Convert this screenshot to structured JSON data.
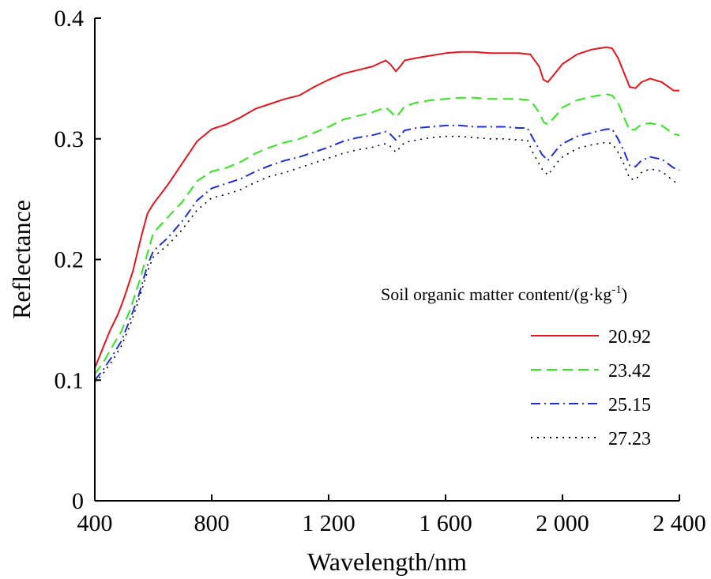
{
  "chart_data": {
    "type": "line",
    "xlabel": "Wavelength/nm",
    "ylabel": "Reflectance",
    "xlim": [
      400,
      2400
    ],
    "ylim": [
      0,
      0.4
    ],
    "x_ticks": [
      400,
      800,
      1200,
      1600,
      2000,
      2400
    ],
    "x_tick_labels": [
      "400",
      "800",
      "1 200",
      "1 600",
      "2 000",
      "2 400"
    ],
    "y_ticks": [
      0,
      0.1,
      0.2,
      0.3,
      0.4
    ],
    "y_tick_labels": [
      "0",
      "0.1",
      "0.2",
      "0.3",
      "0.4"
    ],
    "grid": false,
    "legend": {
      "title_main": "Soil organic matter content/(g·kg",
      "title_sup": "-1",
      "title_end": ")",
      "placement": "right"
    },
    "series": [
      {
        "name": "20.92",
        "color": "#e8141c",
        "style": "solid",
        "points": [
          [
            400,
            0.11
          ],
          [
            420,
            0.122
          ],
          [
            450,
            0.14
          ],
          [
            480,
            0.155
          ],
          [
            500,
            0.168
          ],
          [
            530,
            0.19
          ],
          [
            560,
            0.22
          ],
          [
            580,
            0.238
          ],
          [
            600,
            0.246
          ],
          [
            650,
            0.262
          ],
          [
            700,
            0.28
          ],
          [
            750,
            0.298
          ],
          [
            800,
            0.308
          ],
          [
            850,
            0.312
          ],
          [
            900,
            0.318
          ],
          [
            950,
            0.325
          ],
          [
            1000,
            0.329
          ],
          [
            1050,
            0.333
          ],
          [
            1100,
            0.336
          ],
          [
            1150,
            0.343
          ],
          [
            1200,
            0.349
          ],
          [
            1250,
            0.354
          ],
          [
            1300,
            0.357
          ],
          [
            1350,
            0.36
          ],
          [
            1395,
            0.365
          ],
          [
            1410,
            0.362
          ],
          [
            1430,
            0.356
          ],
          [
            1445,
            0.36
          ],
          [
            1460,
            0.365
          ],
          [
            1500,
            0.367
          ],
          [
            1550,
            0.369
          ],
          [
            1600,
            0.371
          ],
          [
            1650,
            0.372
          ],
          [
            1700,
            0.372
          ],
          [
            1750,
            0.371
          ],
          [
            1800,
            0.371
          ],
          [
            1850,
            0.371
          ],
          [
            1890,
            0.37
          ],
          [
            1920,
            0.36
          ],
          [
            1935,
            0.349
          ],
          [
            1950,
            0.347
          ],
          [
            1980,
            0.356
          ],
          [
            2000,
            0.362
          ],
          [
            2050,
            0.37
          ],
          [
            2100,
            0.374
          ],
          [
            2150,
            0.376
          ],
          [
            2170,
            0.375
          ],
          [
            2190,
            0.367
          ],
          [
            2210,
            0.355
          ],
          [
            2230,
            0.343
          ],
          [
            2250,
            0.342
          ],
          [
            2270,
            0.347
          ],
          [
            2300,
            0.35
          ],
          [
            2340,
            0.347
          ],
          [
            2380,
            0.34
          ],
          [
            2400,
            0.34
          ]
        ]
      },
      {
        "name": "23.42",
        "color": "#2ee81a",
        "style": "dashed",
        "points": [
          [
            400,
            0.105
          ],
          [
            430,
            0.115
          ],
          [
            460,
            0.128
          ],
          [
            490,
            0.14
          ],
          [
            520,
            0.158
          ],
          [
            550,
            0.18
          ],
          [
            580,
            0.205
          ],
          [
            600,
            0.222
          ],
          [
            650,
            0.235
          ],
          [
            700,
            0.248
          ],
          [
            750,
            0.265
          ],
          [
            800,
            0.273
          ],
          [
            850,
            0.276
          ],
          [
            900,
            0.281
          ],
          [
            950,
            0.288
          ],
          [
            1000,
            0.293
          ],
          [
            1050,
            0.297
          ],
          [
            1100,
            0.3
          ],
          [
            1150,
            0.305
          ],
          [
            1200,
            0.31
          ],
          [
            1250,
            0.316
          ],
          [
            1300,
            0.319
          ],
          [
            1350,
            0.322
          ],
          [
            1395,
            0.326
          ],
          [
            1410,
            0.323
          ],
          [
            1430,
            0.318
          ],
          [
            1445,
            0.322
          ],
          [
            1460,
            0.327
          ],
          [
            1500,
            0.33
          ],
          [
            1550,
            0.332
          ],
          [
            1600,
            0.333
          ],
          [
            1650,
            0.334
          ],
          [
            1700,
            0.334
          ],
          [
            1750,
            0.333
          ],
          [
            1800,
            0.333
          ],
          [
            1850,
            0.333
          ],
          [
            1890,
            0.332
          ],
          [
            1920,
            0.322
          ],
          [
            1935,
            0.314
          ],
          [
            1950,
            0.312
          ],
          [
            1980,
            0.32
          ],
          [
            2000,
            0.326
          ],
          [
            2050,
            0.332
          ],
          [
            2100,
            0.335
          ],
          [
            2150,
            0.337
          ],
          [
            2170,
            0.336
          ],
          [
            2190,
            0.33
          ],
          [
            2210,
            0.318
          ],
          [
            2230,
            0.307
          ],
          [
            2250,
            0.308
          ],
          [
            2270,
            0.312
          ],
          [
            2300,
            0.313
          ],
          [
            2340,
            0.311
          ],
          [
            2380,
            0.304
          ],
          [
            2400,
            0.303
          ]
        ]
      },
      {
        "name": "25.15",
        "color": "#1b2ee0",
        "style": "dashdot",
        "points": [
          [
            400,
            0.1
          ],
          [
            430,
            0.109
          ],
          [
            460,
            0.12
          ],
          [
            490,
            0.132
          ],
          [
            520,
            0.15
          ],
          [
            550,
            0.17
          ],
          [
            580,
            0.195
          ],
          [
            600,
            0.207
          ],
          [
            650,
            0.218
          ],
          [
            700,
            0.232
          ],
          [
            750,
            0.249
          ],
          [
            800,
            0.259
          ],
          [
            850,
            0.263
          ],
          [
            900,
            0.267
          ],
          [
            950,
            0.273
          ],
          [
            1000,
            0.278
          ],
          [
            1050,
            0.282
          ],
          [
            1100,
            0.285
          ],
          [
            1150,
            0.289
          ],
          [
            1200,
            0.293
          ],
          [
            1250,
            0.298
          ],
          [
            1300,
            0.301
          ],
          [
            1350,
            0.303
          ],
          [
            1395,
            0.306
          ],
          [
            1410,
            0.304
          ],
          [
            1430,
            0.299
          ],
          [
            1445,
            0.303
          ],
          [
            1460,
            0.307
          ],
          [
            1500,
            0.309
          ],
          [
            1550,
            0.31
          ],
          [
            1600,
            0.311
          ],
          [
            1650,
            0.311
          ],
          [
            1700,
            0.31
          ],
          [
            1750,
            0.31
          ],
          [
            1800,
            0.31
          ],
          [
            1850,
            0.309
          ],
          [
            1880,
            0.309
          ],
          [
            1900,
            0.3
          ],
          [
            1930,
            0.287
          ],
          [
            1950,
            0.282
          ],
          [
            1980,
            0.291
          ],
          [
            2000,
            0.296
          ],
          [
            2050,
            0.302
          ],
          [
            2100,
            0.305
          ],
          [
            2150,
            0.308
          ],
          [
            2170,
            0.308
          ],
          [
            2190,
            0.3
          ],
          [
            2210,
            0.29
          ],
          [
            2230,
            0.278
          ],
          [
            2250,
            0.277
          ],
          [
            2270,
            0.282
          ],
          [
            2300,
            0.285
          ],
          [
            2340,
            0.283
          ],
          [
            2380,
            0.276
          ],
          [
            2400,
            0.274
          ]
        ]
      },
      {
        "name": "27.23",
        "color": "#000000",
        "style": "dotted",
        "points": [
          [
            400,
            0.098
          ],
          [
            430,
            0.106
          ],
          [
            460,
            0.116
          ],
          [
            490,
            0.128
          ],
          [
            520,
            0.145
          ],
          [
            550,
            0.166
          ],
          [
            580,
            0.19
          ],
          [
            600,
            0.202
          ],
          [
            650,
            0.212
          ],
          [
            700,
            0.225
          ],
          [
            750,
            0.241
          ],
          [
            800,
            0.251
          ],
          [
            850,
            0.254
          ],
          [
            900,
            0.258
          ],
          [
            950,
            0.264
          ],
          [
            1000,
            0.269
          ],
          [
            1050,
            0.272
          ],
          [
            1100,
            0.276
          ],
          [
            1150,
            0.28
          ],
          [
            1200,
            0.284
          ],
          [
            1250,
            0.288
          ],
          [
            1300,
            0.291
          ],
          [
            1350,
            0.293
          ],
          [
            1395,
            0.296
          ],
          [
            1410,
            0.294
          ],
          [
            1430,
            0.289
          ],
          [
            1445,
            0.293
          ],
          [
            1460,
            0.297
          ],
          [
            1500,
            0.299
          ],
          [
            1550,
            0.301
          ],
          [
            1600,
            0.302
          ],
          [
            1650,
            0.302
          ],
          [
            1700,
            0.301
          ],
          [
            1750,
            0.3
          ],
          [
            1800,
            0.3
          ],
          [
            1850,
            0.299
          ],
          [
            1880,
            0.299
          ],
          [
            1900,
            0.288
          ],
          [
            1930,
            0.275
          ],
          [
            1950,
            0.27
          ],
          [
            1980,
            0.28
          ],
          [
            2000,
            0.285
          ],
          [
            2050,
            0.292
          ],
          [
            2100,
            0.295
          ],
          [
            2150,
            0.297
          ],
          [
            2170,
            0.296
          ],
          [
            2190,
            0.289
          ],
          [
            2210,
            0.279
          ],
          [
            2230,
            0.267
          ],
          [
            2250,
            0.266
          ],
          [
            2270,
            0.272
          ],
          [
            2300,
            0.275
          ],
          [
            2340,
            0.273
          ],
          [
            2380,
            0.265
          ],
          [
            2400,
            0.262
          ]
        ]
      }
    ]
  }
}
